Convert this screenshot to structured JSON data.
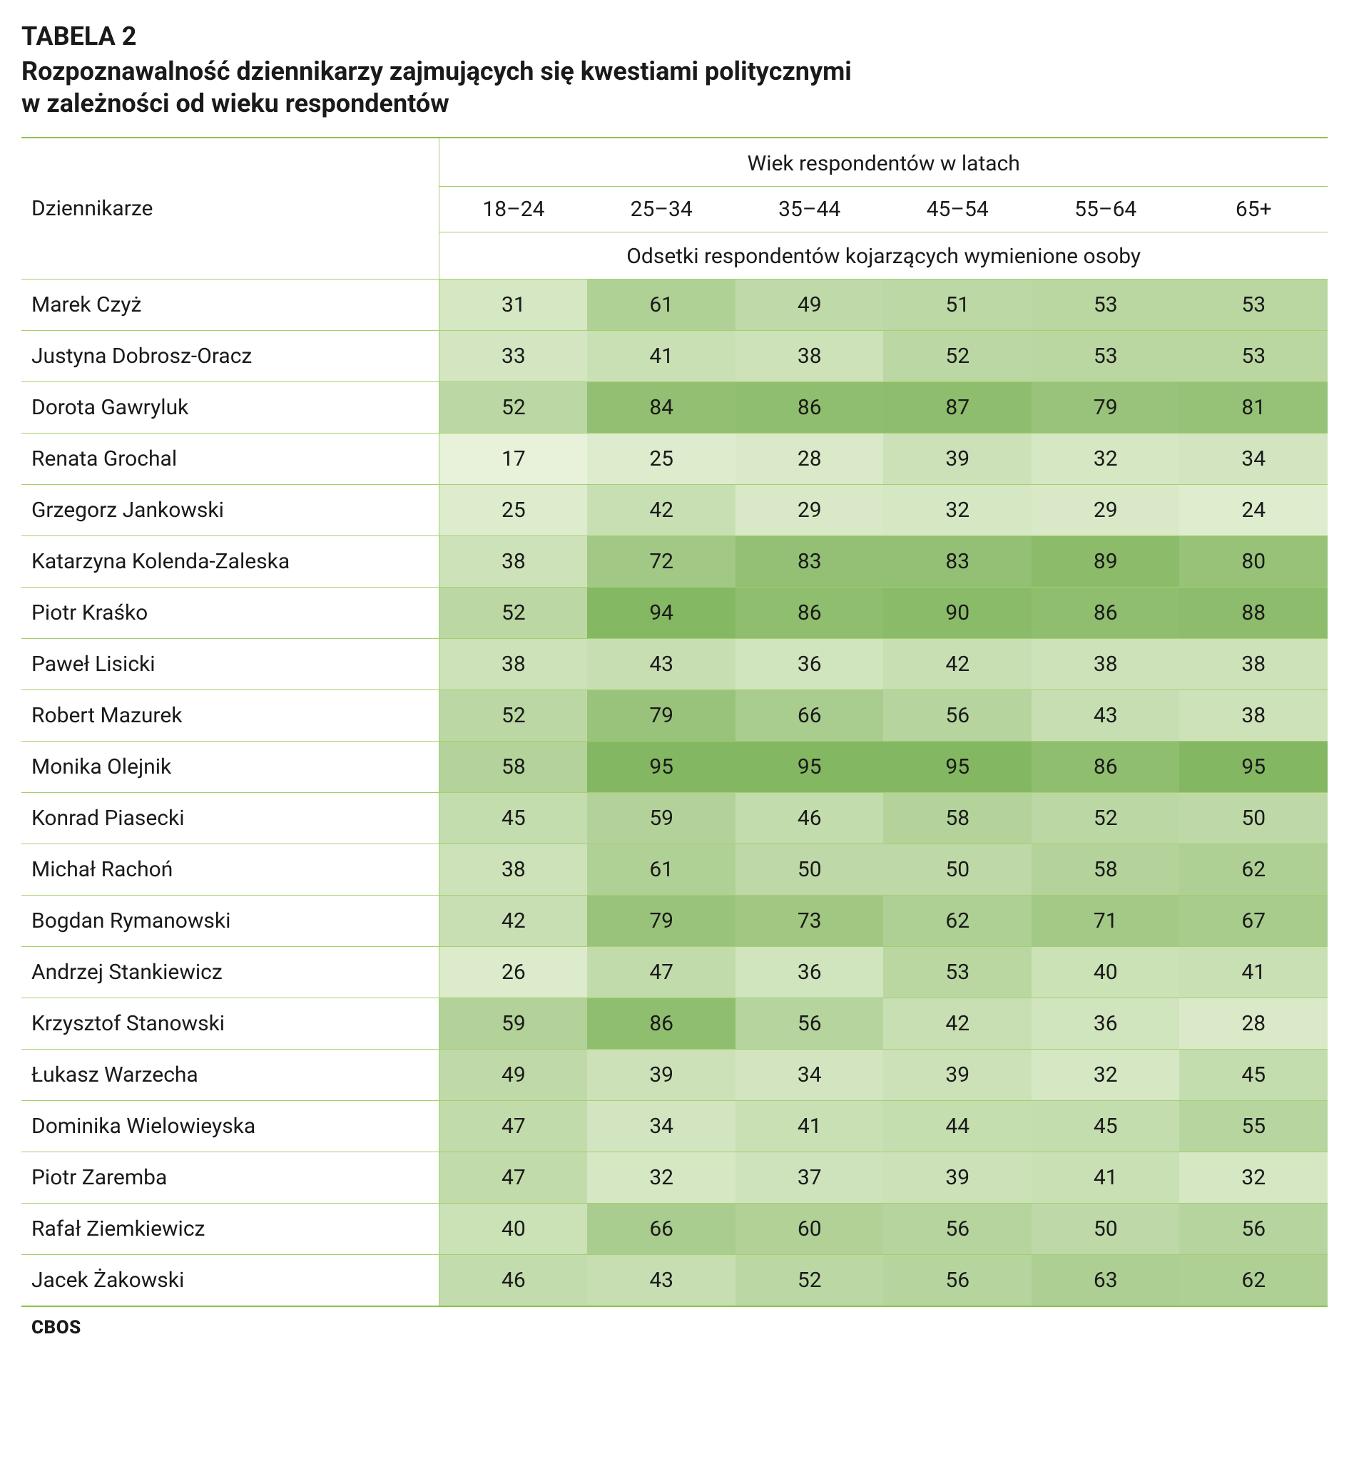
{
  "table_label": "TABELA 2",
  "title_line1": "Rozpoznawalność dziennikarzy zajmujących się kwestiami politycznymi",
  "title_line2": "w zależności od  wieku respondentów",
  "header": {
    "row_label": "Dziennikarze",
    "super_header": "Wiek respondentów w latach",
    "age_cols": [
      "18–24",
      "25–34",
      "35–44",
      "45–54",
      "55–64",
      "65+"
    ],
    "sub_header": "Odsetki respondentów kojarzących wymienione osoby"
  },
  "heat": {
    "min": 17,
    "max": 95,
    "lo_color": "#e8f2da",
    "hi_color": "#84b761"
  },
  "rows": [
    {
      "name": "Marek Czyż",
      "vals": [
        31,
        61,
        49,
        51,
        53,
        53
      ]
    },
    {
      "name": "Justyna Dobrosz-Oracz",
      "vals": [
        33,
        41,
        38,
        52,
        53,
        53
      ]
    },
    {
      "name": "Dorota Gawryluk",
      "vals": [
        52,
        84,
        86,
        87,
        79,
        81
      ]
    },
    {
      "name": "Renata Grochal",
      "vals": [
        17,
        25,
        28,
        39,
        32,
        34
      ]
    },
    {
      "name": "Grzegorz Jankowski",
      "vals": [
        25,
        42,
        29,
        32,
        29,
        24
      ]
    },
    {
      "name": "Katarzyna Kolenda-Zaleska",
      "vals": [
        38,
        72,
        83,
        83,
        89,
        80
      ]
    },
    {
      "name": "Piotr Kraśko",
      "vals": [
        52,
        94,
        86,
        90,
        86,
        88
      ]
    },
    {
      "name": "Paweł Lisicki",
      "vals": [
        38,
        43,
        36,
        42,
        38,
        38
      ]
    },
    {
      "name": "Robert Mazurek",
      "vals": [
        52,
        79,
        66,
        56,
        43,
        38
      ]
    },
    {
      "name": "Monika Olejnik",
      "vals": [
        58,
        95,
        95,
        95,
        86,
        95
      ]
    },
    {
      "name": "Konrad Piasecki",
      "vals": [
        45,
        59,
        46,
        58,
        52,
        50
      ]
    },
    {
      "name": "Michał Rachoń",
      "vals": [
        38,
        61,
        50,
        50,
        58,
        62
      ]
    },
    {
      "name": "Bogdan Rymanowski",
      "vals": [
        42,
        79,
        73,
        62,
        71,
        67
      ]
    },
    {
      "name": "Andrzej Stankiewicz",
      "vals": [
        26,
        47,
        36,
        53,
        40,
        41
      ]
    },
    {
      "name": "Krzysztof Stanowski",
      "vals": [
        59,
        86,
        56,
        42,
        36,
        28
      ]
    },
    {
      "name": "Łukasz Warzecha",
      "vals": [
        49,
        39,
        34,
        39,
        32,
        45
      ]
    },
    {
      "name": "Dominika Wielowieyska",
      "vals": [
        47,
        34,
        41,
        44,
        45,
        55
      ]
    },
    {
      "name": "Piotr Zaremba",
      "vals": [
        47,
        32,
        37,
        39,
        41,
        32
      ]
    },
    {
      "name": "Rafał Ziemkiewicz",
      "vals": [
        40,
        66,
        60,
        56,
        50,
        56
      ]
    },
    {
      "name": "Jacek Żakowski",
      "vals": [
        46,
        43,
        52,
        56,
        63,
        62
      ]
    }
  ],
  "footer_brand": "CBOS"
}
